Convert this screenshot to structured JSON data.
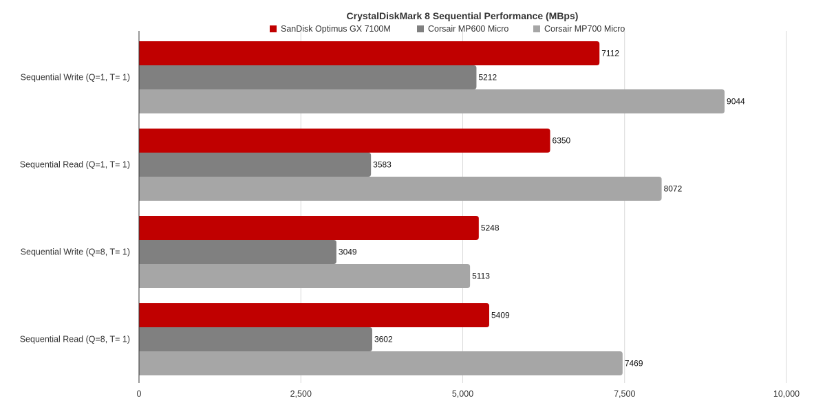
{
  "chart_data": {
    "type": "bar",
    "orientation": "horizontal",
    "title": "CrystalDiskMark 8 Sequential Performance (MBps)",
    "xlabel": "",
    "ylabel": "",
    "categories": [
      "Sequential Write (Q=1, T= 1)",
      "Sequential Read (Q=1, T= 1)",
      "Sequential Write (Q=8, T= 1)",
      "Sequential Read (Q=8, T= 1)"
    ],
    "series": [
      {
        "name": "SanDisk Optimus GX 7100M",
        "color": "#c00000",
        "values": [
          7112,
          6350,
          5248,
          5409
        ]
      },
      {
        "name": "Corsair MP600 Micro",
        "color": "#808080",
        "values": [
          5212,
          3583,
          3049,
          3602
        ]
      },
      {
        "name": "Corsair MP700 Micro",
        "color": "#a6a6a6",
        "values": [
          9044,
          8072,
          5113,
          7469
        ]
      }
    ],
    "xlim": [
      0,
      10000
    ],
    "ticks": [
      0,
      2500,
      5000,
      7500,
      10000
    ],
    "tick_labels": [
      "0",
      "2,500",
      "5,000",
      "7,500",
      "10,000"
    ],
    "grid": true,
    "gridline_color": "#d9d9d9",
    "legend_position": "top-center"
  }
}
